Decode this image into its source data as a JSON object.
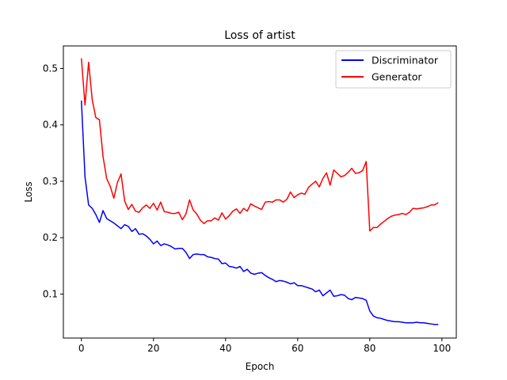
{
  "chart_data": {
    "type": "line",
    "title": "Loss of artist",
    "xlabel": "Epoch",
    "ylabel": "Loss",
    "xlim": [
      -5,
      104
    ],
    "ylim": [
      0.022,
      0.54
    ],
    "x_ticks": [
      0,
      20,
      40,
      60,
      80,
      100
    ],
    "y_ticks": [
      0.1,
      0.2,
      0.3,
      0.4,
      0.5
    ],
    "grid": false,
    "legend": "top-right",
    "series": [
      {
        "name": "Discriminator",
        "color": "#0000ff",
        "x": [
          0,
          1,
          2,
          3,
          4,
          5,
          6,
          7,
          8,
          9,
          10,
          11,
          12,
          13,
          14,
          15,
          16,
          17,
          18,
          19,
          20,
          21,
          22,
          23,
          24,
          25,
          26,
          27,
          28,
          29,
          30,
          31,
          32,
          33,
          34,
          35,
          36,
          37,
          38,
          39,
          40,
          41,
          42,
          43,
          44,
          45,
          46,
          47,
          48,
          49,
          50,
          51,
          52,
          53,
          54,
          55,
          56,
          57,
          58,
          59,
          60,
          61,
          62,
          63,
          64,
          65,
          66,
          67,
          68,
          69,
          70,
          71,
          72,
          73,
          74,
          75,
          76,
          77,
          78,
          79,
          80,
          81,
          82,
          83,
          84,
          85,
          86,
          87,
          88,
          89,
          90,
          91,
          92,
          93,
          94,
          95,
          96,
          97,
          98,
          99
        ],
        "values": [
          0.443,
          0.308,
          0.258,
          0.252,
          0.241,
          0.227,
          0.248,
          0.234,
          0.23,
          0.226,
          0.221,
          0.216,
          0.223,
          0.22,
          0.211,
          0.216,
          0.206,
          0.207,
          0.203,
          0.197,
          0.189,
          0.194,
          0.186,
          0.189,
          0.187,
          0.184,
          0.18,
          0.181,
          0.181,
          0.174,
          0.163,
          0.17,
          0.171,
          0.17,
          0.17,
          0.166,
          0.165,
          0.163,
          0.162,
          0.154,
          0.155,
          0.149,
          0.148,
          0.146,
          0.149,
          0.14,
          0.144,
          0.137,
          0.135,
          0.137,
          0.138,
          0.133,
          0.129,
          0.126,
          0.122,
          0.124,
          0.123,
          0.121,
          0.118,
          0.12,
          0.115,
          0.115,
          0.113,
          0.111,
          0.109,
          0.104,
          0.107,
          0.097,
          0.102,
          0.107,
          0.096,
          0.097,
          0.099,
          0.098,
          0.092,
          0.09,
          0.094,
          0.093,
          0.092,
          0.089,
          0.07,
          0.061,
          0.058,
          0.057,
          0.055,
          0.053,
          0.052,
          0.051,
          0.051,
          0.05,
          0.049,
          0.049,
          0.049,
          0.05,
          0.049,
          0.049,
          0.048,
          0.047,
          0.046,
          0.046
        ]
      },
      {
        "name": "Generator",
        "color": "#ff0000",
        "x": [
          0,
          1,
          2,
          3,
          4,
          5,
          6,
          7,
          8,
          9,
          10,
          11,
          12,
          13,
          14,
          15,
          16,
          17,
          18,
          19,
          20,
          21,
          22,
          23,
          24,
          25,
          26,
          27,
          28,
          29,
          30,
          31,
          32,
          33,
          34,
          35,
          36,
          37,
          38,
          39,
          40,
          41,
          42,
          43,
          44,
          45,
          46,
          47,
          48,
          49,
          50,
          51,
          52,
          53,
          54,
          55,
          56,
          57,
          58,
          59,
          60,
          61,
          62,
          63,
          64,
          65,
          66,
          67,
          68,
          69,
          70,
          71,
          72,
          73,
          74,
          75,
          76,
          77,
          78,
          79,
          80,
          81,
          82,
          83,
          84,
          85,
          86,
          87,
          88,
          89,
          90,
          91,
          92,
          93,
          94,
          95,
          96,
          97,
          98,
          99
        ],
        "values": [
          0.518,
          0.435,
          0.511,
          0.445,
          0.413,
          0.409,
          0.344,
          0.305,
          0.291,
          0.27,
          0.298,
          0.313,
          0.265,
          0.25,
          0.259,
          0.247,
          0.245,
          0.253,
          0.258,
          0.252,
          0.261,
          0.249,
          0.263,
          0.246,
          0.245,
          0.243,
          0.243,
          0.245,
          0.232,
          0.242,
          0.267,
          0.249,
          0.242,
          0.231,
          0.225,
          0.23,
          0.23,
          0.235,
          0.231,
          0.244,
          0.233,
          0.239,
          0.247,
          0.251,
          0.243,
          0.252,
          0.247,
          0.26,
          0.256,
          0.253,
          0.25,
          0.263,
          0.264,
          0.263,
          0.267,
          0.267,
          0.263,
          0.268,
          0.281,
          0.271,
          0.276,
          0.279,
          0.277,
          0.289,
          0.295,
          0.3,
          0.29,
          0.305,
          0.315,
          0.293,
          0.32,
          0.314,
          0.308,
          0.31,
          0.316,
          0.323,
          0.314,
          0.315,
          0.319,
          0.335,
          0.212,
          0.218,
          0.218,
          0.224,
          0.229,
          0.234,
          0.238,
          0.24,
          0.241,
          0.243,
          0.241,
          0.245,
          0.252,
          0.251,
          0.252,
          0.253,
          0.255,
          0.258,
          0.258,
          0.262
        ]
      }
    ]
  }
}
